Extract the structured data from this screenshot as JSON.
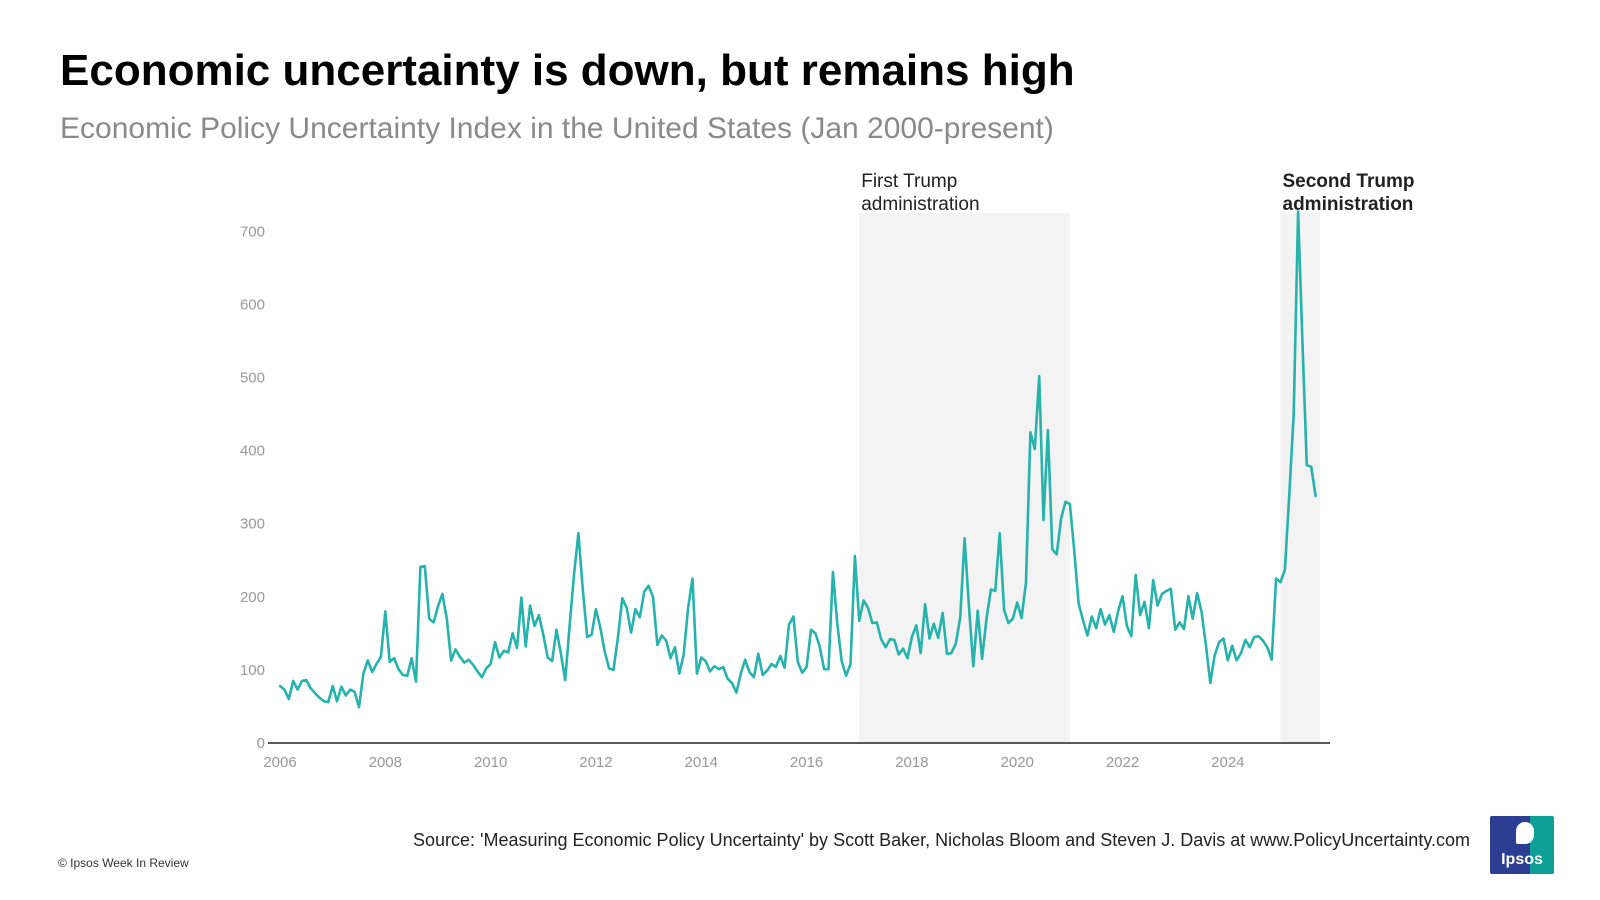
{
  "header": {
    "title": "Economic uncertainty is down, but remains high",
    "subtitle": "Economic Policy Uncertainty Index in the United States (Jan 2000-present)"
  },
  "footer": {
    "source": "Source: 'Measuring Economic Policy Uncertainty' by Scott Baker, Nicholas Bloom and Steven J. Davis at www.PolicyUncertainty.com",
    "copyright": "© Ipsos Week In Review",
    "logo_text": "Ipsos"
  },
  "colors": {
    "line": "#26b3ab",
    "shade": "#f3f3f3",
    "axis": "#222222",
    "tick": "#999999",
    "logo_teal": "#0e9f96",
    "logo_blue": "#2d3e92"
  },
  "chart_data": {
    "type": "line",
    "title": "Economic uncertainty is down, but remains high",
    "subtitle": "Economic Policy Uncertainty Index in the United States (Jan 2000-present)",
    "xlabel": "",
    "ylabel": "",
    "ylim": [
      0,
      725
    ],
    "xlim": [
      "2006-01",
      "2025-10"
    ],
    "yticks": [
      0,
      100,
      200,
      300,
      400,
      500,
      600,
      700
    ],
    "xticks": [
      "2006",
      "2008",
      "2010",
      "2012",
      "2014",
      "2016",
      "2018",
      "2020",
      "2022",
      "2024"
    ],
    "grid": false,
    "annotations": [
      {
        "label_line1": "First Trump",
        "label_line2": "administration",
        "bold": false,
        "start": "2017-01",
        "end": "2021-01"
      },
      {
        "label_line1": "Second Trump",
        "label_line2": "administration",
        "bold": true,
        "start": "2025-01",
        "end": "2025-10"
      }
    ],
    "series": [
      {
        "x_start": "2006-01",
        "frequency": "monthly",
        "values": [
          78,
          73,
          60,
          85,
          73,
          85,
          86,
          75,
          68,
          62,
          57,
          56,
          78,
          57,
          77,
          65,
          73,
          70,
          49,
          95,
          113,
          97,
          108,
          118,
          180,
          111,
          116,
          101,
          93,
          92,
          116,
          84,
          241,
          242,
          170,
          165,
          187,
          204,
          170,
          113,
          128,
          118,
          110,
          114,
          107,
          98,
          90,
          102,
          108,
          138,
          117,
          126,
          124,
          150,
          130,
          199,
          132,
          188,
          160,
          175,
          148,
          117,
          112,
          155,
          123,
          86,
          160,
          230,
          287,
          210,
          145,
          148,
          183,
          158,
          125,
          102,
          100,
          144,
          198,
          185,
          151,
          183,
          172,
          207,
          215,
          200,
          134,
          147,
          140,
          116,
          131,
          95,
          121,
          185,
          225,
          95,
          117,
          112,
          98,
          105,
          101,
          104,
          88,
          82,
          69,
          95,
          114,
          97,
          90,
          122,
          93,
          99,
          108,
          104,
          119,
          103,
          162,
          173,
          111,
          96,
          104,
          155,
          150,
          132,
          101,
          101,
          234,
          163,
          112,
          92,
          108,
          256,
          167,
          195,
          185,
          164,
          165,
          142,
          131,
          142,
          141,
          121,
          129,
          116,
          145,
          161,
          123,
          190,
          143,
          163,
          144,
          178,
          122,
          123,
          136,
          171,
          280,
          188,
          105,
          181,
          115,
          170,
          210,
          208,
          287,
          182,
          164,
          170,
          192,
          171,
          220,
          425,
          402,
          502,
          305,
          428,
          265,
          258,
          307,
          330,
          327,
          262,
          191,
          168,
          147,
          173,
          157,
          183,
          162,
          175,
          152,
          180,
          201,
          160,
          146,
          230,
          175,
          193,
          157,
          223,
          188,
          204,
          208,
          211,
          155,
          165,
          156,
          201,
          170,
          205,
          180,
          134,
          82,
          120,
          138,
          143,
          113,
          133,
          113,
          123,
          141,
          131,
          145,
          146,
          140,
          131,
          114,
          225,
          220,
          237,
          340,
          450,
          727,
          550,
          380,
          378,
          338
        ]
      }
    ]
  }
}
